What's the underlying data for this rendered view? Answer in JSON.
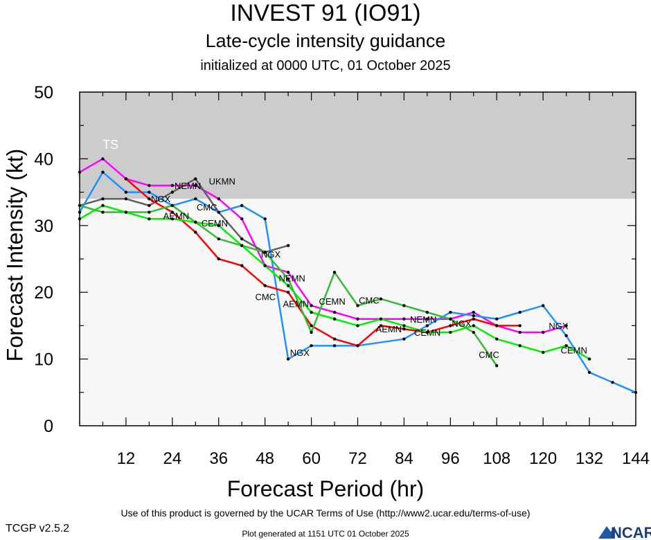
{
  "header": {
    "title": "INVEST 91 (IO91)",
    "subtitle": "Late-cycle intensity guidance",
    "initialized": "initialized at 0000 UTC, 01 October 2025"
  },
  "footer": {
    "terms": "Use of this product is governed by the UCAR Terms of Use (http://www2.ucar.edu/terms-of-use)",
    "version": "TCGP v2.5.2",
    "generated": "Plot generated at 1151 UTC   01 October 2025",
    "logo_text": "NCAR"
  },
  "chart_data": {
    "type": "line",
    "xlabel": "Forecast Period (hr)",
    "ylabel": "Forecast Intensity (kt)",
    "xlim": [
      0,
      144
    ],
    "ylim": [
      0,
      50
    ],
    "xticks": [
      12,
      24,
      36,
      48,
      60,
      72,
      84,
      96,
      108,
      120,
      132,
      144
    ],
    "yticks": [
      0,
      10,
      20,
      30,
      40,
      50
    ],
    "grid": false,
    "bands": [
      {
        "label": "TS",
        "from": 34,
        "to": 50,
        "color": "#cccccc"
      },
      {
        "label": "",
        "from": 0,
        "to": 34,
        "color": "#f8f8f8"
      }
    ],
    "series": [
      {
        "name": "NEMN",
        "color": "#ff00ff",
        "x": [
          0,
          6,
          12,
          18,
          24,
          30,
          36,
          42,
          48,
          54,
          60,
          66,
          72,
          78,
          84,
          90,
          96,
          102,
          108,
          114,
          120,
          126
        ],
        "y": [
          38,
          40,
          37,
          36,
          36,
          36,
          34,
          31,
          24,
          23,
          18,
          17,
          16,
          16,
          16,
          16,
          16,
          17,
          15,
          14,
          14,
          15
        ],
        "labels_at": [
          28,
          55,
          89
        ]
      },
      {
        "name": "UKMN",
        "color": "#606060",
        "x": [
          0,
          6,
          12,
          18,
          24,
          30,
          36,
          42,
          48,
          54
        ],
        "y": [
          33,
          34,
          34,
          33,
          35,
          37,
          32,
          28,
          26,
          27
        ],
        "labels_at": [
          29
        ]
      },
      {
        "name": "NGX",
        "color": "#1e90ff",
        "x": [
          0,
          6,
          12,
          18,
          24,
          30,
          36,
          42,
          48,
          54,
          60,
          66,
          72,
          84,
          90,
          96,
          102,
          108,
          114,
          120,
          126,
          132,
          138,
          144
        ],
        "y": [
          32,
          38,
          35,
          35,
          33,
          34,
          32,
          33,
          31,
          10,
          12,
          12,
          12,
          13,
          15,
          17,
          16.5,
          16,
          17,
          18,
          13.5,
          8,
          6.5,
          5
        ],
        "labels_at": [
          21,
          49.5,
          57,
          91,
          124
        ]
      },
      {
        "name": "AEMN",
        "color": "#ff0000",
        "x": [
          12,
          18,
          24,
          30,
          36,
          42,
          48,
          54,
          60,
          66,
          72,
          78,
          84,
          90,
          96,
          102,
          108,
          114
        ],
        "y": [
          37,
          34,
          32,
          29,
          25,
          24,
          21,
          20,
          15,
          13,
          12,
          15,
          14.5,
          14,
          15,
          16,
          15,
          15
        ],
        "labels_at": [
          25,
          56,
          84
        ]
      },
      {
        "name": "CEMN",
        "color": "#00ee00",
        "x": [
          0,
          6,
          12,
          18,
          24,
          30,
          36,
          42,
          48,
          54,
          60,
          66,
          72,
          78,
          84,
          90,
          96,
          102,
          108,
          114,
          120,
          126,
          132
        ],
        "y": [
          31,
          33,
          32,
          31,
          31,
          30.5,
          30,
          27,
          24,
          21,
          17,
          16,
          15,
          16,
          15,
          14,
          14,
          15,
          13,
          12,
          11,
          12,
          10
        ],
        "labels_at": [
          31,
          57.5,
          94,
          128
        ]
      },
      {
        "name": "CMC",
        "color": "#33bb33",
        "x": [
          0,
          6,
          12,
          18,
          24,
          30,
          36,
          42,
          48,
          54,
          60,
          66,
          72,
          78,
          84,
          90,
          96,
          102,
          108
        ],
        "y": [
          33,
          32,
          32,
          32,
          33,
          30.5,
          28,
          27,
          26,
          22,
          14,
          23,
          18,
          19,
          18,
          17,
          16,
          14,
          9
        ],
        "labels_at": [
          29,
          56,
          71,
          106
        ]
      }
    ]
  }
}
